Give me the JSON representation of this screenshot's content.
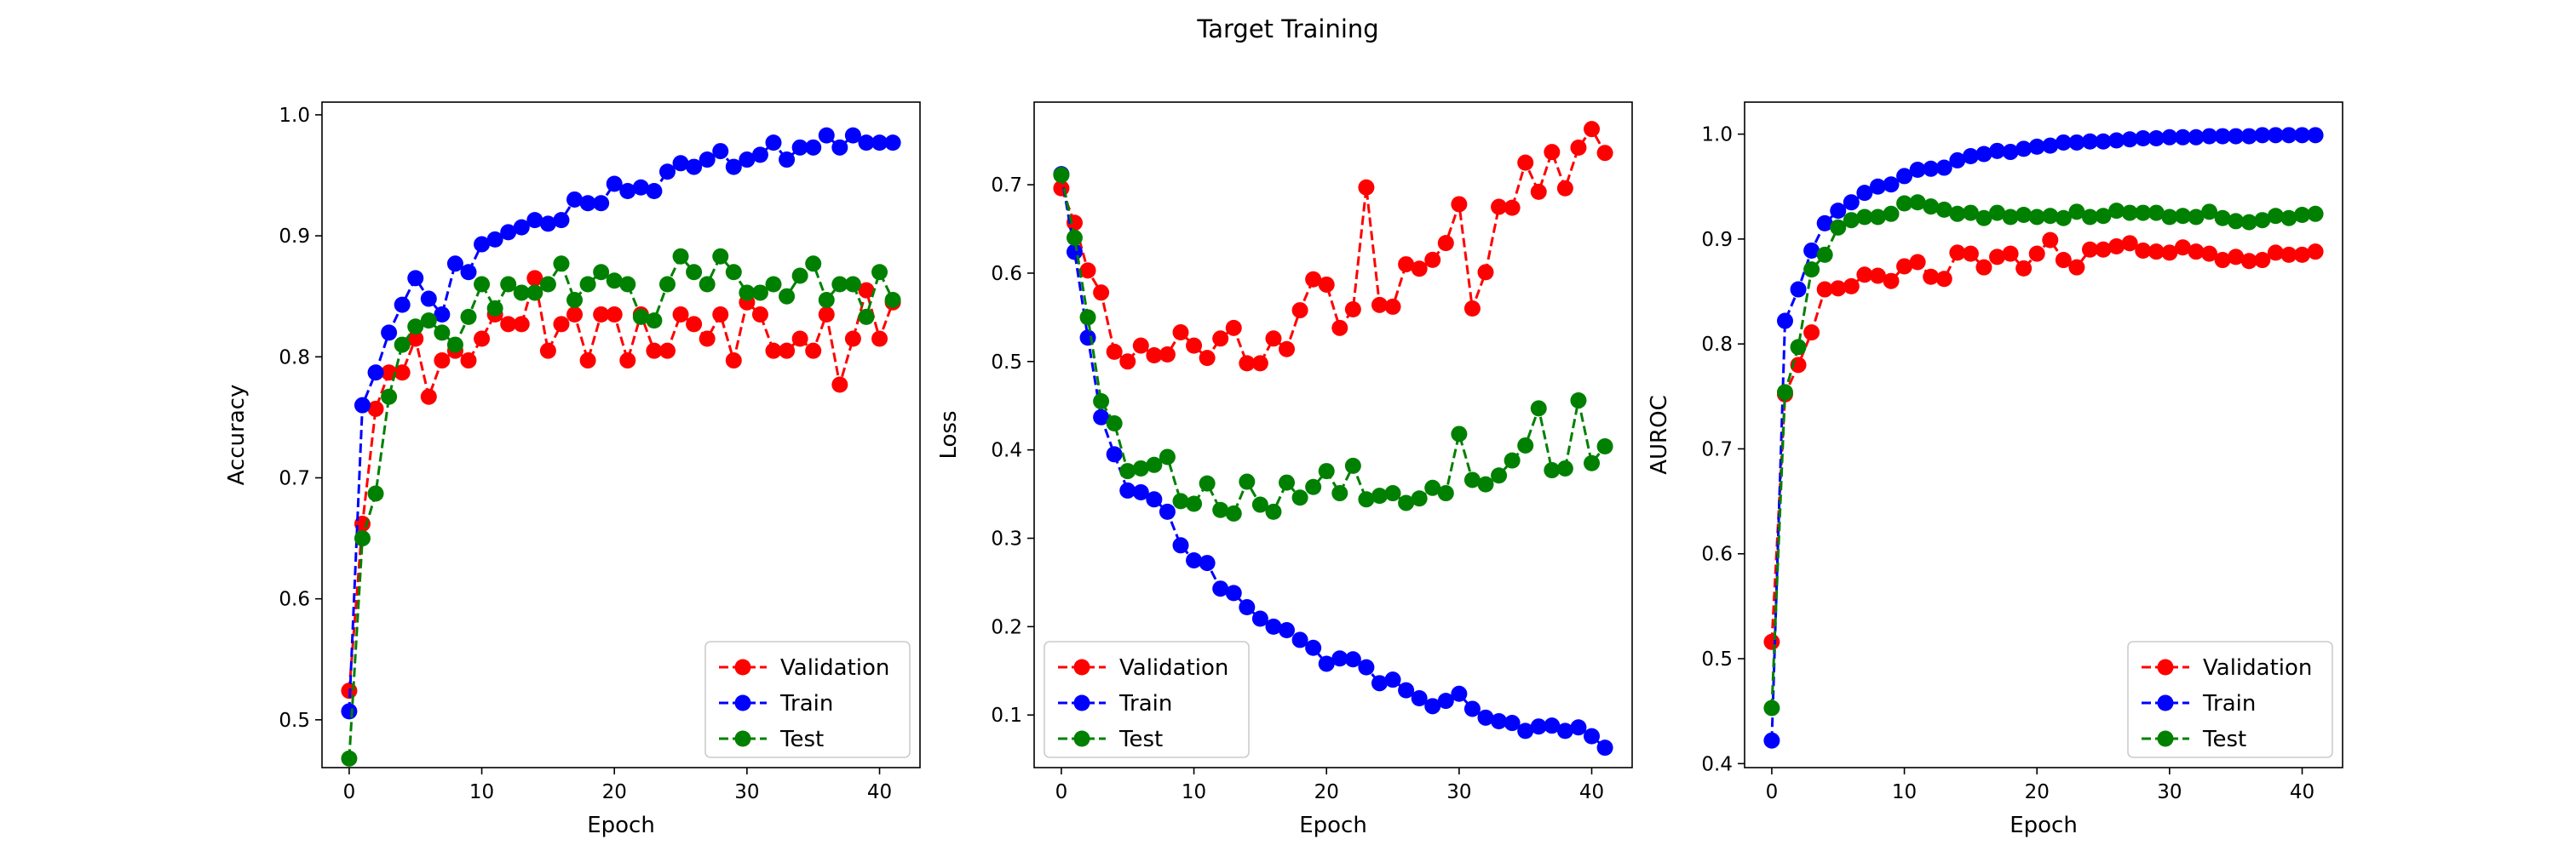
{
  "figure": {
    "title": "Target Training"
  },
  "chart_data": [
    {
      "type": "line",
      "xlabel": "Epoch",
      "ylabel": "Accuracy",
      "xlim": [
        -2.05,
        43.05
      ],
      "ylim": [
        0.4605,
        1.0105
      ],
      "xticks": [
        0,
        10,
        20,
        30,
        40
      ],
      "yticks": [
        0.5,
        0.6,
        0.7,
        0.8,
        0.9,
        1.0
      ],
      "legend_position": "lower right",
      "x": [
        0,
        1,
        2,
        3,
        4,
        5,
        6,
        7,
        8,
        9,
        10,
        11,
        12,
        13,
        14,
        15,
        16,
        17,
        18,
        19,
        20,
        21,
        22,
        23,
        24,
        25,
        26,
        27,
        28,
        29,
        30,
        31,
        32,
        33,
        34,
        35,
        36,
        37,
        38,
        39,
        40,
        41
      ],
      "series": [
        {
          "name": "Validation",
          "color": "#ff0000",
          "values": [
            0.524,
            0.662,
            0.757,
            0.787,
            0.787,
            0.815,
            0.767,
            0.797,
            0.805,
            0.797,
            0.815,
            0.835,
            0.827,
            0.827,
            0.865,
            0.805,
            0.827,
            0.835,
            0.797,
            0.835,
            0.835,
            0.797,
            0.835,
            0.805,
            0.805,
            0.835,
            0.827,
            0.815,
            0.835,
            0.797,
            0.845,
            0.835,
            0.805,
            0.805,
            0.815,
            0.805,
            0.835,
            0.777,
            0.815,
            0.855,
            0.815,
            0.845
          ]
        },
        {
          "name": "Train",
          "color": "#0000ff",
          "values": [
            0.507,
            0.76,
            0.787,
            0.82,
            0.843,
            0.865,
            0.848,
            0.835,
            0.877,
            0.87,
            0.893,
            0.897,
            0.903,
            0.907,
            0.913,
            0.91,
            0.913,
            0.93,
            0.927,
            0.927,
            0.943,
            0.937,
            0.94,
            0.937,
            0.953,
            0.96,
            0.957,
            0.963,
            0.97,
            0.957,
            0.963,
            0.967,
            0.977,
            0.963,
            0.973,
            0.973,
            0.983,
            0.973,
            0.983,
            0.977,
            0.977,
            0.977
          ]
        },
        {
          "name": "Test",
          "color": "#008000",
          "values": [
            0.468,
            0.65,
            0.687,
            0.767,
            0.81,
            0.825,
            0.83,
            0.82,
            0.81,
            0.833,
            0.86,
            0.84,
            0.86,
            0.853,
            0.853,
            0.86,
            0.877,
            0.847,
            0.86,
            0.87,
            0.863,
            0.86,
            0.833,
            0.83,
            0.86,
            0.883,
            0.87,
            0.86,
            0.883,
            0.87,
            0.853,
            0.853,
            0.86,
            0.85,
            0.867,
            0.877,
            0.847,
            0.86,
            0.86,
            0.833,
            0.87,
            0.847
          ]
        }
      ]
    },
    {
      "type": "line",
      "xlabel": "Epoch",
      "ylabel": "Loss",
      "xlim": [
        -2.05,
        43.05
      ],
      "ylim": [
        0.0405,
        0.7935
      ],
      "xticks": [
        0,
        10,
        20,
        30,
        40
      ],
      "yticks": [
        0.1,
        0.2,
        0.3,
        0.4,
        0.5,
        0.6,
        0.7
      ],
      "legend_position": "lower left",
      "x": [
        0,
        1,
        2,
        3,
        4,
        5,
        6,
        7,
        8,
        9,
        10,
        11,
        12,
        13,
        14,
        15,
        16,
        17,
        18,
        19,
        20,
        21,
        22,
        23,
        24,
        25,
        26,
        27,
        28,
        29,
        30,
        31,
        32,
        33,
        34,
        35,
        36,
        37,
        38,
        39,
        40,
        41
      ],
      "series": [
        {
          "name": "Validation",
          "color": "#ff0000",
          "values": [
            0.696,
            0.657,
            0.603,
            0.578,
            0.511,
            0.5,
            0.518,
            0.507,
            0.508,
            0.533,
            0.518,
            0.504,
            0.526,
            0.538,
            0.498,
            0.498,
            0.526,
            0.514,
            0.558,
            0.593,
            0.587,
            0.538,
            0.559,
            0.697,
            0.564,
            0.562,
            0.61,
            0.605,
            0.615,
            0.634,
            0.678,
            0.56,
            0.601,
            0.675,
            0.674,
            0.725,
            0.692,
            0.737,
            0.696,
            0.742,
            0.763,
            0.736
          ]
        },
        {
          "name": "Train",
          "color": "#0000ff",
          "values": [
            0.712,
            0.624,
            0.527,
            0.437,
            0.395,
            0.354,
            0.352,
            0.344,
            0.33,
            0.292,
            0.275,
            0.272,
            0.243,
            0.238,
            0.222,
            0.209,
            0.2,
            0.196,
            0.185,
            0.176,
            0.158,
            0.164,
            0.163,
            0.154,
            0.136,
            0.14,
            0.128,
            0.119,
            0.11,
            0.116,
            0.124,
            0.107,
            0.097,
            0.093,
            0.091,
            0.082,
            0.087,
            0.088,
            0.082,
            0.086,
            0.076,
            0.063
          ]
        },
        {
          "name": "Test",
          "color": "#008000",
          "values": [
            0.711,
            0.64,
            0.55,
            0.455,
            0.43,
            0.376,
            0.379,
            0.383,
            0.392,
            0.342,
            0.339,
            0.362,
            0.332,
            0.328,
            0.364,
            0.338,
            0.33,
            0.363,
            0.346,
            0.358,
            0.376,
            0.351,
            0.382,
            0.344,
            0.348,
            0.351,
            0.34,
            0.345,
            0.357,
            0.351,
            0.418,
            0.366,
            0.361,
            0.371,
            0.388,
            0.405,
            0.447,
            0.377,
            0.379,
            0.456,
            0.385,
            0.404
          ]
        }
      ]
    },
    {
      "type": "line",
      "xlabel": "Epoch",
      "ylabel": "AUROC",
      "xlim": [
        -2.05,
        43.05
      ],
      "ylim": [
        0.3962,
        1.0305
      ],
      "xticks": [
        0,
        10,
        20,
        30,
        40
      ],
      "yticks": [
        0.4,
        0.5,
        0.6,
        0.7,
        0.8,
        0.9,
        1.0
      ],
      "legend_position": "lower right",
      "x": [
        0,
        1,
        2,
        3,
        4,
        5,
        6,
        7,
        8,
        9,
        10,
        11,
        12,
        13,
        14,
        15,
        16,
        17,
        18,
        19,
        20,
        21,
        22,
        23,
        24,
        25,
        26,
        27,
        28,
        29,
        30,
        31,
        32,
        33,
        34,
        35,
        36,
        37,
        38,
        39,
        40,
        41
      ],
      "series": [
        {
          "name": "Validation",
          "color": "#ff0000",
          "values": [
            0.516,
            0.752,
            0.78,
            0.811,
            0.852,
            0.853,
            0.855,
            0.866,
            0.865,
            0.86,
            0.874,
            0.878,
            0.864,
            0.862,
            0.887,
            0.886,
            0.873,
            0.883,
            0.886,
            0.872,
            0.886,
            0.899,
            0.88,
            0.873,
            0.89,
            0.89,
            0.893,
            0.896,
            0.889,
            0.888,
            0.887,
            0.892,
            0.888,
            0.886,
            0.88,
            0.883,
            0.879,
            0.88,
            0.887,
            0.885,
            0.885,
            0.888
          ]
        },
        {
          "name": "Train",
          "color": "#0000ff",
          "values": [
            0.422,
            0.822,
            0.852,
            0.889,
            0.915,
            0.927,
            0.935,
            0.944,
            0.95,
            0.952,
            0.96,
            0.966,
            0.967,
            0.968,
            0.975,
            0.979,
            0.981,
            0.984,
            0.983,
            0.986,
            0.988,
            0.989,
            0.992,
            0.992,
            0.993,
            0.993,
            0.994,
            0.995,
            0.996,
            0.996,
            0.997,
            0.997,
            0.997,
            0.998,
            0.998,
            0.998,
            0.998,
            0.999,
            0.999,
            0.999,
            0.999,
            0.999
          ]
        },
        {
          "name": "Test",
          "color": "#008000",
          "values": [
            0.453,
            0.754,
            0.797,
            0.871,
            0.885,
            0.911,
            0.918,
            0.921,
            0.921,
            0.924,
            0.934,
            0.935,
            0.931,
            0.928,
            0.924,
            0.925,
            0.92,
            0.925,
            0.921,
            0.923,
            0.921,
            0.922,
            0.92,
            0.926,
            0.921,
            0.922,
            0.927,
            0.925,
            0.925,
            0.925,
            0.921,
            0.922,
            0.921,
            0.926,
            0.92,
            0.917,
            0.916,
            0.918,
            0.922,
            0.92,
            0.923,
            0.924
          ]
        }
      ]
    }
  ]
}
